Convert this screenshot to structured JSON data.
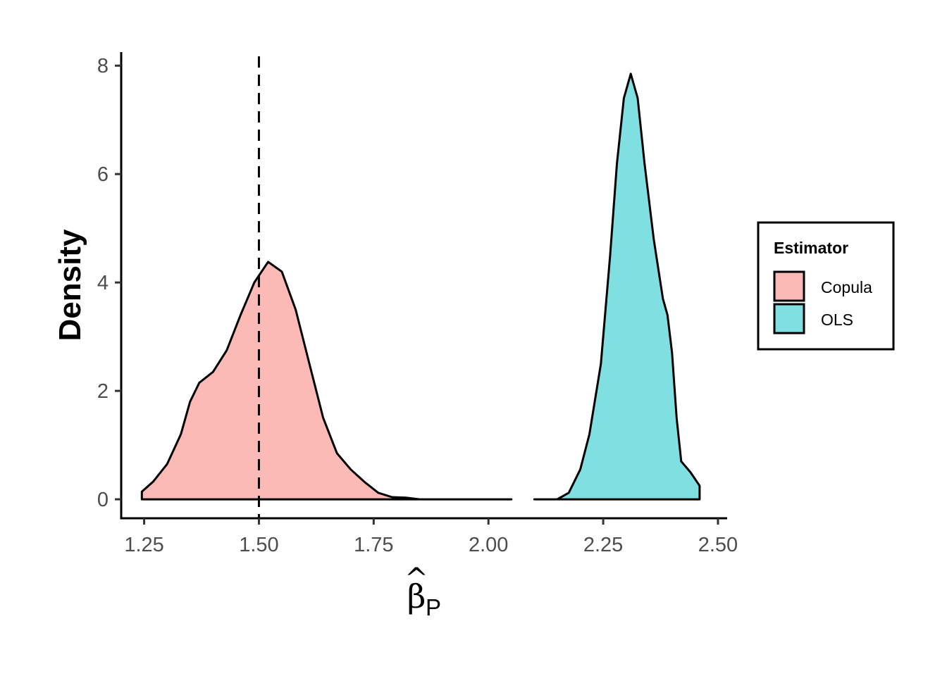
{
  "chart_data": {
    "type": "area",
    "chart_kind": "density",
    "xlabel": "β̂P",
    "xlabel_parts": {
      "symbol": "β",
      "hat": "^",
      "subscript": "P"
    },
    "ylabel": "Density",
    "xlim": [
      1.2,
      2.52
    ],
    "ylim": [
      -0.35,
      8.25
    ],
    "x_ticks": [
      1.25,
      1.5,
      1.75,
      2.0,
      2.25,
      2.5
    ],
    "x_tick_labels": [
      "1.25",
      "1.50",
      "1.75",
      "2.00",
      "2.25",
      "2.50"
    ],
    "y_ticks": [
      0,
      2,
      4,
      6,
      8
    ],
    "y_tick_labels": [
      "0",
      "2",
      "4",
      "6",
      "8"
    ],
    "grid": false,
    "reference_line": {
      "x": 1.5,
      "style": "dashed",
      "color": "#000000"
    },
    "legend": {
      "title": "Estimator",
      "position": "right"
    },
    "series": [
      {
        "name": "Copula",
        "color": "#F8766D",
        "fill_opacity": 0.5,
        "points": [
          [
            1.245,
            0.14
          ],
          [
            1.27,
            0.33
          ],
          [
            1.3,
            0.65
          ],
          [
            1.33,
            1.2
          ],
          [
            1.35,
            1.8
          ],
          [
            1.37,
            2.15
          ],
          [
            1.4,
            2.35
          ],
          [
            1.43,
            2.75
          ],
          [
            1.46,
            3.4
          ],
          [
            1.49,
            4.0
          ],
          [
            1.52,
            4.38
          ],
          [
            1.55,
            4.2
          ],
          [
            1.58,
            3.5
          ],
          [
            1.61,
            2.5
          ],
          [
            1.64,
            1.5
          ],
          [
            1.67,
            0.85
          ],
          [
            1.7,
            0.55
          ],
          [
            1.73,
            0.32
          ],
          [
            1.76,
            0.12
          ],
          [
            1.79,
            0.04
          ],
          [
            1.82,
            0.03
          ],
          [
            1.85,
            0.0
          ],
          [
            1.95,
            0.0
          ],
          [
            2.05,
            0.0
          ]
        ]
      },
      {
        "name": "OLS",
        "color": "#00BFC4",
        "fill_opacity": 0.5,
        "points": [
          [
            2.1,
            0.0
          ],
          [
            2.15,
            0.0
          ],
          [
            2.175,
            0.12
          ],
          [
            2.2,
            0.55
          ],
          [
            2.22,
            1.2
          ],
          [
            2.245,
            2.5
          ],
          [
            2.265,
            4.5
          ],
          [
            2.28,
            6.2
          ],
          [
            2.295,
            7.4
          ],
          [
            2.31,
            7.85
          ],
          [
            2.325,
            7.4
          ],
          [
            2.34,
            6.2
          ],
          [
            2.36,
            4.8
          ],
          [
            2.38,
            3.7
          ],
          [
            2.39,
            3.4
          ],
          [
            2.4,
            2.7
          ],
          [
            2.41,
            1.5
          ],
          [
            2.42,
            0.7
          ],
          [
            2.44,
            0.5
          ],
          [
            2.46,
            0.25
          ]
        ]
      }
    ]
  }
}
